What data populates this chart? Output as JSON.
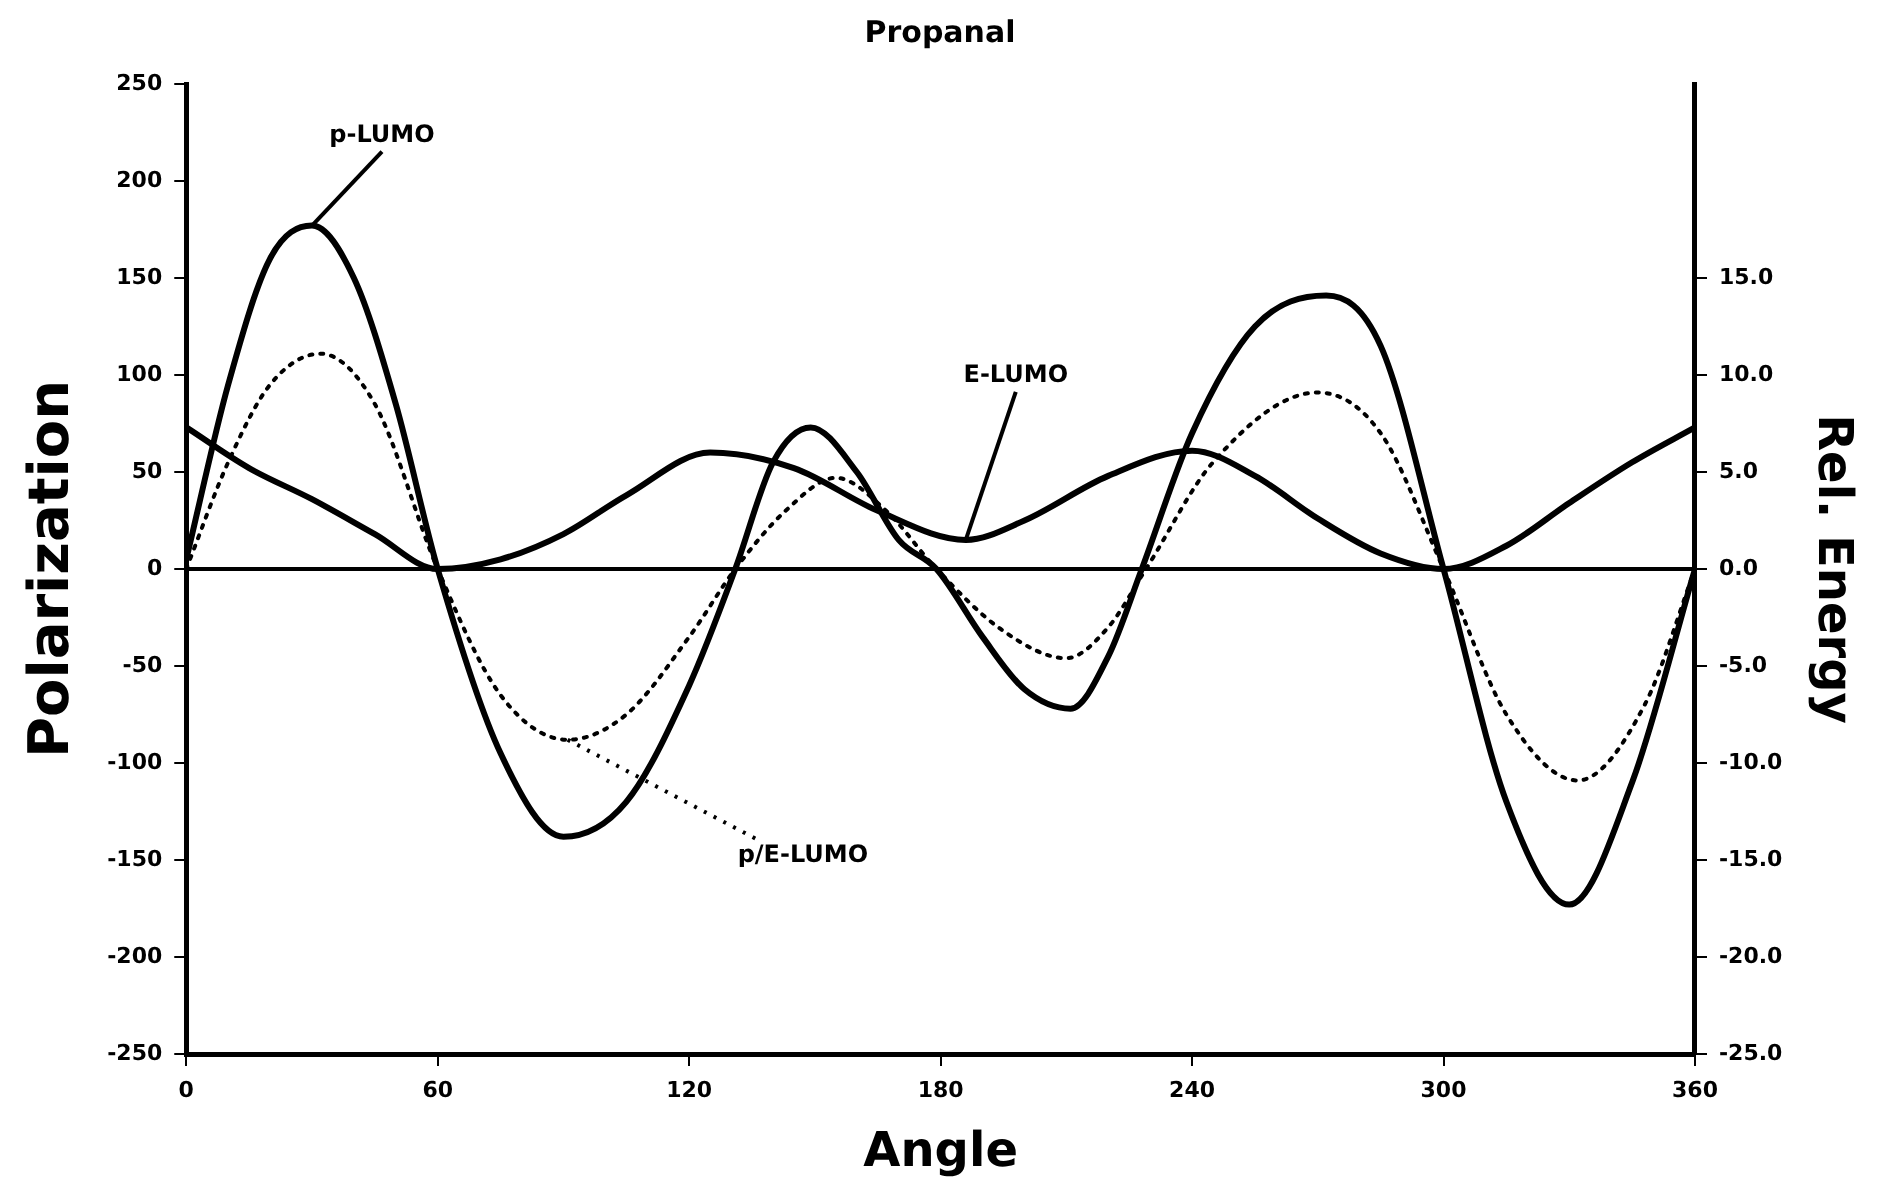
{
  "chart_data": {
    "type": "line",
    "title": "Propanal",
    "xlabel": "Angle",
    "ylabel": "Polarization",
    "y2label": "Rel. Energy",
    "xlim": [
      0,
      360
    ],
    "xticks": [
      0,
      60,
      120,
      180,
      240,
      300,
      360
    ],
    "ylim": [
      -250,
      250
    ],
    "yticks": [
      -250,
      -200,
      -150,
      -100,
      -50,
      0,
      50,
      100,
      150,
      200,
      250
    ],
    "y2lim": [
      -25,
      25
    ],
    "y2ticks": [
      {
        "value": -25,
        "label": "-25.0"
      },
      {
        "value": -20,
        "label": "-20.0"
      },
      {
        "value": -15,
        "label": "-15.0"
      },
      {
        "value": -10,
        "label": "-10.0"
      },
      {
        "value": -5,
        "label": "-5.0"
      },
      {
        "value": 0,
        "label": "0.0"
      },
      {
        "value": 5,
        "label": "5.0"
      },
      {
        "value": 10,
        "label": "10.0"
      },
      {
        "value": 15,
        "label": "15.0"
      }
    ],
    "grid": false,
    "legend": false,
    "marker": "none",
    "ref_lines": [
      {
        "axis": "y",
        "value": 0,
        "color": "#000000"
      }
    ],
    "series": [
      {
        "name": "p-LUMO",
        "color": "#000000",
        "line_style": "solid",
        "x": [
          0,
          10,
          20,
          30,
          40,
          50,
          60,
          75,
          90,
          105,
          120,
          131,
          140,
          149,
          160,
          170,
          179,
          190,
          200,
          211,
          220,
          228,
          240,
          255,
          272,
          285,
          300,
          315,
          330,
          345,
          360
        ],
        "values": [
          5,
          95,
          160,
          177,
          150,
          85,
          0,
          -95,
          -138,
          -120,
          -60,
          0,
          55,
          73,
          50,
          15,
          0,
          -35,
          -62,
          -72,
          -45,
          0,
          70,
          125,
          141,
          115,
          0,
          -120,
          -173,
          -110,
          0
        ]
      },
      {
        "name": "E-LUMO",
        "color": "#000000",
        "line_style": "solid",
        "axis": "y2",
        "x": [
          0,
          15,
          30,
          45,
          60,
          75,
          90,
          105,
          125,
          145,
          165,
          186,
          200,
          220,
          240,
          255,
          270,
          285,
          300,
          315,
          330,
          345,
          360
        ],
        "values": [
          7.3,
          5.2,
          3.6,
          1.8,
          0,
          0.5,
          1.8,
          3.8,
          6,
          5.2,
          3,
          1.5,
          2.5,
          4.8,
          6.1,
          4.8,
          2.6,
          0.8,
          0,
          1.2,
          3.4,
          5.5,
          7.3
        ]
      },
      {
        "name": "p/E-LUMO",
        "color": "#000000",
        "line_style": "dotted",
        "x": [
          0,
          10,
          20,
          32,
          45,
          60,
          75,
          91,
          105,
          120,
          131,
          143,
          155,
          167,
          179,
          195,
          210,
          220,
          229,
          245,
          270,
          285,
          300,
          315,
          332,
          348,
          360
        ],
        "values": [
          0,
          55,
          95,
          111,
          85,
          0,
          -65,
          -88,
          -75,
          -35,
          0,
          30,
          47,
          30,
          0,
          -32,
          -46,
          -30,
          0,
          55,
          91,
          70,
          0,
          -75,
          -109,
          -70,
          0
        ]
      }
    ]
  }
}
